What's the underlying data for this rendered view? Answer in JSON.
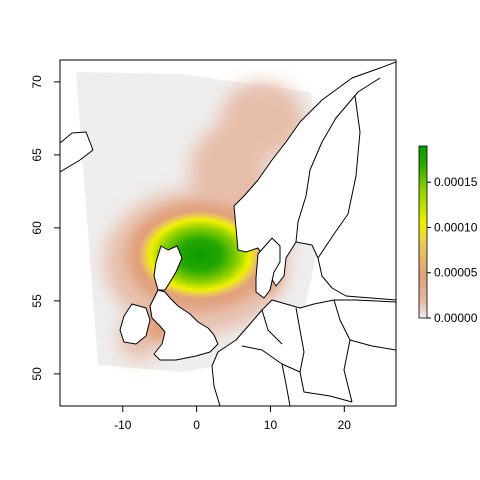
{
  "chart_data": {
    "type": "heatmap",
    "title": "",
    "xlabel": "",
    "ylabel": "",
    "xlim": [
      -18.5,
      27
    ],
    "ylim": [
      47.8,
      71.5
    ],
    "x_ticks": [
      -10,
      0,
      10,
      20
    ],
    "y_ticks": [
      50,
      55,
      60,
      65,
      70
    ],
    "x_tick_labels": [
      "-10",
      "0",
      "10",
      "20"
    ],
    "y_tick_labels": [
      "50",
      "55",
      "60",
      "65",
      "70"
    ],
    "colorbar": {
      "range": [
        0,
        0.00019
      ],
      "ticks": [
        0,
        5e-05,
        0.0001,
        0.00015
      ],
      "tick_labels": [
        "0.00000",
        "0.00005",
        "0.00010",
        "0.00015"
      ],
      "colors": [
        "#eeeeee",
        "#e6b8a2",
        "#e1a07b",
        "#eac65b",
        "#f1f100",
        "#8fd000",
        "#25a800",
        "#0c9a00"
      ]
    },
    "density_peak": {
      "lon": 2,
      "lat": 57.5,
      "value": 0.00019
    },
    "grid": false,
    "legend": "right"
  }
}
